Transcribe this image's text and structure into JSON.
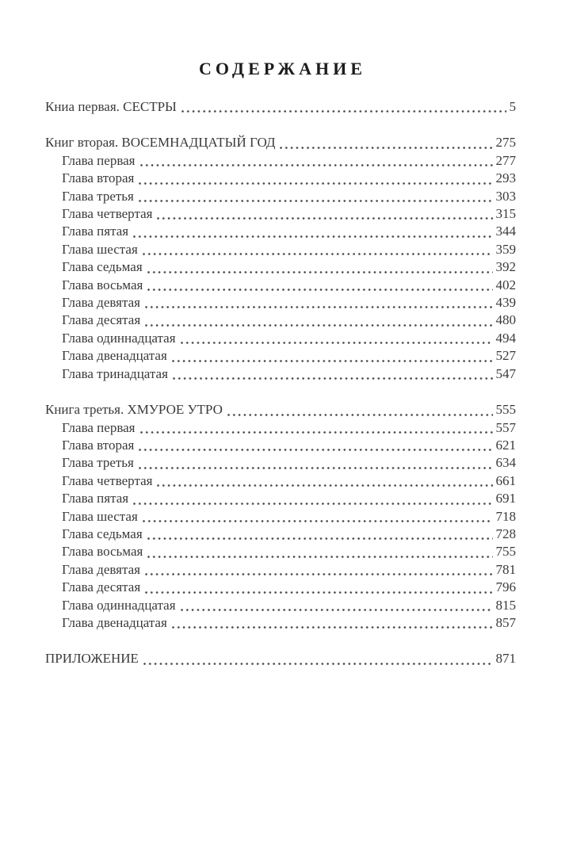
{
  "page": {
    "title": "СОДЕРЖАНИЕ"
  },
  "colors": {
    "background": "#ffffff",
    "title_text": "#1c1c1c",
    "body_text": "#3a3a3a",
    "dot_leader": "#4a4a4a"
  },
  "toc": {
    "sections": [
      {
        "label": "Книа первая. СЕСТРЫ",
        "page": "5",
        "chapters": []
      },
      {
        "label": "Книг вторая. ВОСЕМНАДЦАТЫЙ ГОД",
        "page": "275",
        "chapters": [
          {
            "label": "Глава первая",
            "page": "277"
          },
          {
            "label": "Глава вторая",
            "page": "293"
          },
          {
            "label": "Глава третья",
            "page": "303"
          },
          {
            "label": "Глава четвертая",
            "page": "315"
          },
          {
            "label": "Глава пятая",
            "page": "344"
          },
          {
            "label": "Глава шестая",
            "page": "359"
          },
          {
            "label": "Глава седьмая",
            "page": "392"
          },
          {
            "label": "Глава восьмая",
            "page": "402"
          },
          {
            "label": "Глава девятая",
            "page": "439"
          },
          {
            "label": "Глава десятая",
            "page": "480"
          },
          {
            "label": "Глава одиннадцатая",
            "page": "494"
          },
          {
            "label": "Глава двенадцатая",
            "page": "527"
          },
          {
            "label": "Глава тринадцатая",
            "page": "547"
          }
        ]
      },
      {
        "label": "Книга третья. ХМУРОЕ УТРО",
        "page": "555",
        "chapters": [
          {
            "label": "Глава первая",
            "page": "557"
          },
          {
            "label": "Глава вторая",
            "page": "621"
          },
          {
            "label": "Глава третья",
            "page": "634"
          },
          {
            "label": "Глава четвертая",
            "page": "661"
          },
          {
            "label": "Глава пятая",
            "page": "691"
          },
          {
            "label": "Глава шестая",
            "page": "718"
          },
          {
            "label": "Глава седьмая",
            "page": "728"
          },
          {
            "label": "Глава восьмая",
            "page": "755"
          },
          {
            "label": "Глава девятая",
            "page": "781"
          },
          {
            "label": "Глава десятая",
            "page": "796"
          },
          {
            "label": "Глава одиннадцатая",
            "page": "815"
          },
          {
            "label": "Глава двенадцатая",
            "page": "857"
          }
        ]
      },
      {
        "label": "ПРИЛОЖЕНИЕ",
        "page": "871",
        "chapters": []
      }
    ]
  }
}
